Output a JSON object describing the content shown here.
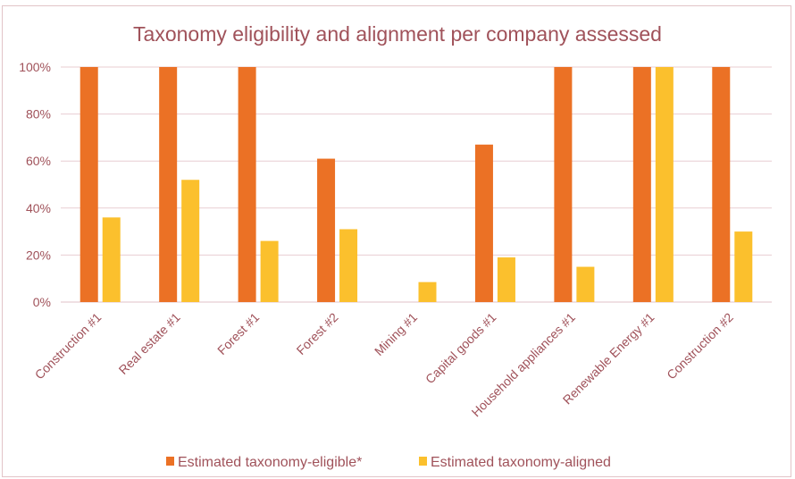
{
  "chart_data": {
    "type": "bar",
    "title": "Taxonomy eligibility and alignment per company assessed",
    "xlabel": "",
    "ylabel": "",
    "ylim": [
      0,
      100
    ],
    "y_ticks": [
      "0%",
      "20%",
      "40%",
      "60%",
      "80%",
      "100%"
    ],
    "y_tick_values": [
      0,
      20,
      40,
      60,
      80,
      100
    ],
    "grid": true,
    "legend_position": "bottom",
    "categories": [
      "Construction #1",
      "Real estate #1",
      "Forest #1",
      "Forest #2",
      "Mining #1",
      "Capital goods #1",
      "Household appliances #1",
      "Renewable Energy #1",
      "Construction #2"
    ],
    "series": [
      {
        "name": "Estimated taxonomy-eligible*",
        "color": "#EB7125",
        "values": [
          100,
          100,
          100,
          61,
          0,
          67,
          100,
          100,
          100
        ]
      },
      {
        "name": "Estimated taxonomy-aligned",
        "color": "#FBC02D",
        "values": [
          36,
          52,
          26,
          31,
          8.5,
          19,
          15,
          100,
          30
        ]
      }
    ],
    "colors": {
      "title": "#A0525A",
      "axis_text": "#A0525A",
      "grid": "#E8CDD2",
      "frame": "#E2C4C8"
    }
  }
}
